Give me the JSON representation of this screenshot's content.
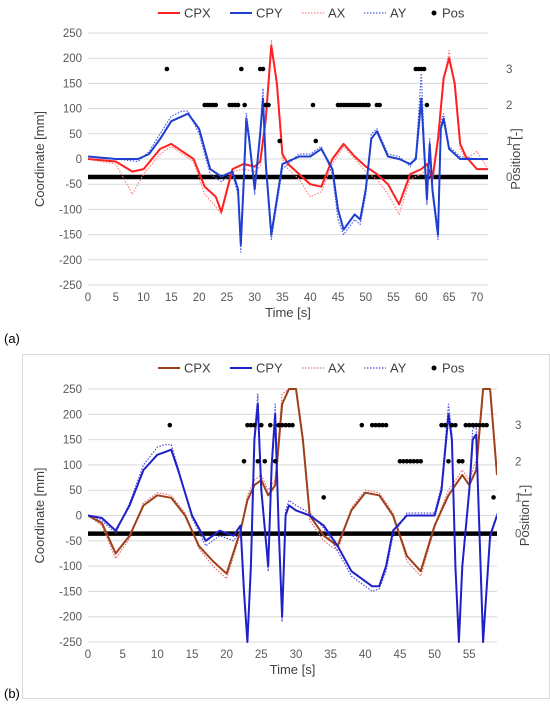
{
  "chart_data": [
    {
      "panel_label": "(a)",
      "type": "line",
      "xlabel": "Time [s]",
      "ylabel": "Coordinate [mm]",
      "y2label": "Position [-]",
      "xlim": [
        0,
        72
      ],
      "ylim": [
        -250,
        250
      ],
      "y2lim": [
        -3,
        4
      ],
      "x_ticks": [
        0,
        5,
        10,
        15,
        20,
        25,
        30,
        35,
        40,
        45,
        50,
        55,
        60,
        65,
        70
      ],
      "y_ticks": [
        -250,
        -200,
        -150,
        -100,
        -50,
        0,
        50,
        100,
        150,
        200,
        250
      ],
      "y2_ticks": [
        0,
        1,
        2,
        3
      ],
      "grid": "horizontal",
      "legend_position": "top",
      "series": [
        {
          "name": "CPX",
          "color": "#ff2020",
          "style": "solid",
          "x": [
            0,
            5,
            8,
            10,
            13,
            15,
            17,
            19,
            21,
            23,
            24,
            26,
            28,
            30,
            31,
            32,
            33,
            34,
            35,
            36,
            38,
            40,
            42,
            44,
            46,
            48,
            50,
            52,
            54,
            56,
            58,
            60,
            61,
            62,
            63,
            64,
            65,
            66,
            67,
            68,
            70,
            72
          ],
          "y": [
            0,
            -5,
            -25,
            -20,
            20,
            30,
            15,
            0,
            -55,
            -75,
            -105,
            -20,
            -10,
            -15,
            -5,
            80,
            225,
            150,
            10,
            -10,
            -30,
            -50,
            -55,
            0,
            30,
            5,
            -15,
            -30,
            -50,
            -90,
            -30,
            -20,
            -10,
            -40,
            40,
            160,
            200,
            150,
            30,
            5,
            -20,
            -20
          ]
        },
        {
          "name": "CPY",
          "color": "#1f3fd0",
          "style": "solid",
          "x": [
            0,
            5,
            9,
            11,
            13,
            15,
            17,
            18,
            20,
            22,
            24,
            26,
            27,
            27.5,
            28,
            28.5,
            29,
            30,
            31,
            31.5,
            32,
            33,
            35,
            38,
            40,
            42,
            44,
            45,
            46,
            48,
            49,
            50,
            51,
            52,
            54,
            56,
            58,
            59,
            60,
            61,
            61.5,
            62,
            63,
            63.5,
            64,
            65,
            67,
            70,
            72
          ],
          "y": [
            5,
            0,
            0,
            10,
            40,
            75,
            85,
            90,
            60,
            -20,
            -35,
            -25,
            -60,
            -170,
            -50,
            80,
            40,
            -60,
            50,
            120,
            -10,
            -150,
            -10,
            5,
            5,
            20,
            -20,
            -100,
            -140,
            -110,
            -120,
            -60,
            40,
            55,
            5,
            0,
            -10,
            0,
            120,
            -80,
            30,
            -60,
            -150,
            60,
            80,
            20,
            0,
            0,
            0
          ]
        },
        {
          "name": "AX",
          "color": "#ff8080",
          "style": "dotted",
          "x": [
            0,
            5,
            8,
            10,
            13,
            15,
            17,
            19,
            21,
            23,
            24,
            26,
            28,
            30,
            31,
            32,
            33,
            34,
            35,
            36,
            38,
            40,
            42,
            44,
            46,
            48,
            50,
            52,
            54,
            56,
            58,
            60,
            61,
            62,
            63,
            64,
            65,
            66,
            67,
            68,
            70,
            72
          ],
          "y": [
            0,
            -10,
            -70,
            -30,
            10,
            25,
            10,
            -5,
            -70,
            -95,
            -110,
            -25,
            -20,
            -25,
            -15,
            70,
            235,
            140,
            0,
            -20,
            -40,
            -75,
            -65,
            -10,
            25,
            0,
            -25,
            -40,
            -70,
            -110,
            -40,
            -30,
            -20,
            -50,
            30,
            150,
            215,
            140,
            20,
            0,
            15,
            -20
          ]
        },
        {
          "name": "AY",
          "color": "#4f5fe0",
          "style": "dotted",
          "x": [
            0,
            5,
            9,
            11,
            13,
            15,
            17,
            18,
            20,
            22,
            24,
            26,
            27,
            27.5,
            28,
            28.5,
            29,
            30,
            31,
            31.5,
            32,
            33,
            35,
            38,
            40,
            42,
            44,
            45,
            46,
            48,
            49,
            50,
            51,
            52,
            54,
            56,
            58,
            59,
            60,
            61,
            61.5,
            62,
            63,
            63.5,
            64,
            65,
            67,
            70,
            72
          ],
          "y": [
            5,
            0,
            -5,
            15,
            50,
            85,
            95,
            95,
            50,
            -30,
            -45,
            -30,
            -70,
            -185,
            -60,
            90,
            50,
            -70,
            60,
            140,
            -20,
            -160,
            -20,
            10,
            10,
            25,
            -30,
            -120,
            -150,
            -120,
            -130,
            -70,
            50,
            60,
            10,
            5,
            -15,
            5,
            170,
            -90,
            40,
            -70,
            -160,
            70,
            90,
            25,
            5,
            0,
            0
          ]
        }
      ],
      "position_series": {
        "name": "Pos",
        "color": "#000000",
        "x": [
          14.2,
          21,
          21.5,
          22,
          22.5,
          23,
          25.5,
          26,
          26.5,
          27,
          27.6,
          28.2,
          31,
          31.5,
          32,
          32.5,
          34.5,
          40.5,
          41,
          45,
          45.5,
          46,
          46.5,
          47,
          47.5,
          48,
          48.5,
          49,
          49.5,
          50,
          50.5,
          52,
          52.5,
          59,
          59.5,
          60,
          60.5,
          61
        ],
        "y": [
          3,
          2,
          2,
          2,
          2,
          2,
          2,
          2,
          2,
          2,
          3,
          2,
          3,
          3,
          2,
          2,
          1,
          2,
          1,
          2,
          2,
          2,
          2,
          2,
          2,
          2,
          2,
          2,
          2,
          2,
          2,
          2,
          2,
          3,
          3,
          3,
          3,
          2
        ],
        "baseline_value": 0,
        "baseline_xlim": [
          0,
          72
        ]
      }
    },
    {
      "panel_label": "(b)",
      "type": "line",
      "xlabel": "Time [s]",
      "ylabel": "Coordinate [mm]",
      "y2label": "Position [-]",
      "xlim": [
        0,
        59
      ],
      "ylim": [
        -250,
        250
      ],
      "y2lim": [
        -3,
        4
      ],
      "x_ticks": [
        0,
        5,
        10,
        15,
        20,
        25,
        30,
        35,
        40,
        45,
        50,
        55
      ],
      "y_ticks": [
        -250,
        -200,
        -150,
        -100,
        -50,
        0,
        50,
        100,
        150,
        200,
        250
      ],
      "y2_ticks": [
        0,
        1,
        2,
        3
      ],
      "grid": "horizontal",
      "legend_position": "top",
      "series": [
        {
          "name": "CPX",
          "color": "#a0401a",
          "style": "solid",
          "x": [
            0,
            2,
            4,
            6,
            8,
            10,
            12,
            14,
            16,
            18,
            20,
            22,
            23,
            24,
            25,
            26,
            27,
            28,
            29,
            30,
            31,
            32,
            34,
            36,
            38,
            40,
            42,
            44,
            46,
            48,
            50,
            51,
            52,
            53,
            54,
            55,
            56,
            57,
            58,
            59
          ],
          "y": [
            0,
            -15,
            -75,
            -40,
            20,
            40,
            35,
            0,
            -60,
            -90,
            -115,
            -30,
            30,
            60,
            70,
            40,
            60,
            220,
            250,
            250,
            150,
            0,
            -40,
            -60,
            10,
            45,
            40,
            0,
            -80,
            -110,
            -20,
            10,
            40,
            60,
            80,
            60,
            90,
            250,
            250,
            80
          ]
        },
        {
          "name": "CPY",
          "color": "#2020c8",
          "style": "solid",
          "x": [
            0,
            2,
            4,
            6,
            8,
            10,
            11,
            12,
            13,
            15,
            17,
            19,
            21,
            22,
            22.5,
            23,
            23.5,
            24,
            24.5,
            25,
            26,
            26.5,
            27,
            27.5,
            28,
            28.5,
            29,
            30,
            32,
            34,
            36,
            38,
            40,
            41,
            42,
            43,
            44,
            46,
            48,
            50,
            51,
            52,
            52.5,
            53,
            53.5,
            54,
            55,
            55.5,
            56,
            57,
            58,
            59
          ],
          "y": [
            0,
            -5,
            -30,
            20,
            90,
            120,
            125,
            130,
            90,
            0,
            -50,
            -30,
            -40,
            -20,
            -150,
            -250,
            -100,
            150,
            220,
            50,
            -100,
            100,
            200,
            -20,
            -200,
            0,
            20,
            10,
            0,
            -20,
            -60,
            -110,
            -130,
            -140,
            -140,
            -100,
            -30,
            0,
            0,
            0,
            50,
            200,
            150,
            -100,
            -250,
            -100,
            50,
            150,
            160,
            -250,
            -40,
            0
          ]
        },
        {
          "name": "AX",
          "color": "#e07070",
          "style": "dotted",
          "x": [
            0,
            2,
            4,
            6,
            8,
            10,
            12,
            14,
            16,
            18,
            20,
            22,
            23,
            24,
            25,
            26,
            27,
            28,
            29,
            30,
            31,
            32,
            34,
            36,
            38,
            40,
            42,
            44,
            46,
            48,
            50,
            51,
            52,
            53,
            54,
            55,
            56,
            57,
            58,
            59
          ],
          "y": [
            0,
            -20,
            -85,
            -45,
            25,
            45,
            40,
            5,
            -65,
            -100,
            -125,
            -35,
            40,
            70,
            80,
            50,
            70,
            240,
            250,
            250,
            140,
            -10,
            -50,
            -70,
            15,
            50,
            45,
            5,
            -90,
            -120,
            -25,
            15,
            50,
            70,
            90,
            70,
            110,
            250,
            250,
            90
          ]
        },
        {
          "name": "AY",
          "color": "#5050e0",
          "style": "dotted",
          "x": [
            0,
            2,
            4,
            6,
            8,
            10,
            11,
            12,
            13,
            15,
            17,
            19,
            21,
            22,
            22.5,
            23,
            23.5,
            24,
            24.5,
            25,
            26,
            26.5,
            27,
            27.5,
            28,
            28.5,
            29,
            30,
            32,
            34,
            36,
            38,
            40,
            41,
            42,
            43,
            44,
            46,
            48,
            50,
            51,
            52,
            52.5,
            53,
            53.5,
            54,
            55,
            55.5,
            56,
            57,
            58,
            59
          ],
          "y": [
            0,
            -10,
            -35,
            25,
            100,
            135,
            140,
            140,
            95,
            -5,
            -60,
            -40,
            -50,
            -30,
            -160,
            -250,
            -110,
            160,
            240,
            60,
            -110,
            110,
            220,
            -30,
            -210,
            10,
            30,
            20,
            5,
            -25,
            -70,
            -120,
            -140,
            -150,
            -145,
            -110,
            -40,
            5,
            5,
            5,
            60,
            220,
            160,
            -110,
            -250,
            -110,
            60,
            170,
            180,
            -250,
            -50,
            5
          ]
        }
      ],
      "position_series": {
        "name": "Pos",
        "color": "#000000",
        "x": [
          11.8,
          22.5,
          23,
          23.5,
          24,
          24.5,
          25,
          25.5,
          26.3,
          27,
          27.5,
          28,
          28.5,
          29,
          29.5,
          34,
          39.5,
          41,
          41.5,
          42,
          42.5,
          43,
          45,
          45.5,
          46,
          46.5,
          47,
          47.5,
          48,
          51,
          51.5,
          52,
          52.5,
          53,
          53.5,
          54,
          54.5,
          55,
          55.5,
          56,
          56.5,
          57,
          57.5,
          58.5
        ],
        "y": [
          3,
          2,
          3,
          3,
          3,
          2,
          3,
          2,
          3,
          2,
          3,
          3,
          3,
          3,
          3,
          1,
          3,
          3,
          3,
          3,
          3,
          3,
          2,
          2,
          2,
          2,
          2,
          2,
          2,
          3,
          3,
          2,
          3,
          3,
          2,
          2,
          3,
          3,
          3,
          3,
          3,
          3,
          3,
          1
        ],
        "baseline_value": 0,
        "baseline_xlim": [
          0,
          59
        ]
      }
    }
  ]
}
